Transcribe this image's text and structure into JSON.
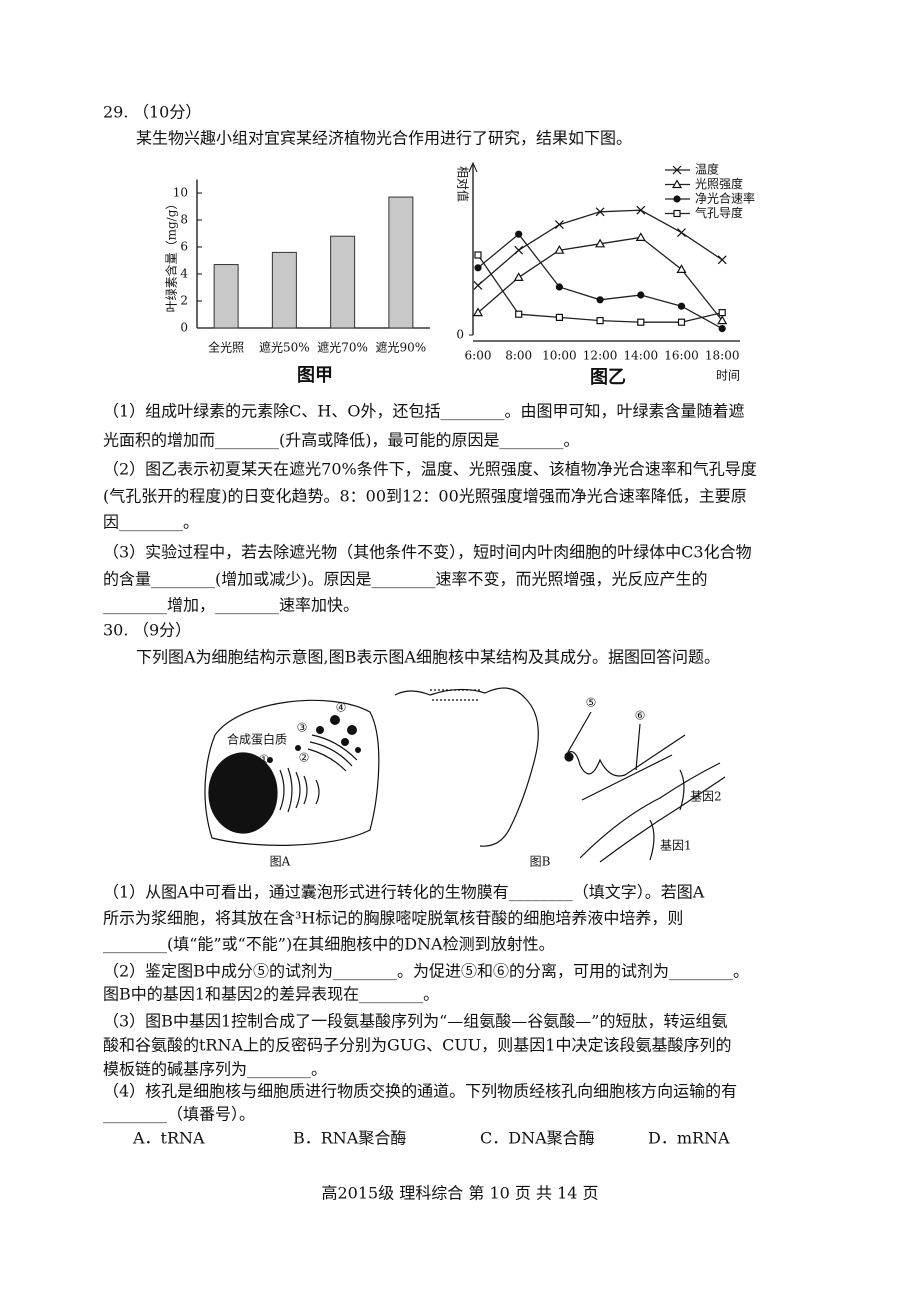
{
  "q29": {
    "number": "29.",
    "score": "（10分）",
    "intro": "某生物兴趣小组对宜宾某经济植物光合作用进行了研究，结果如下图。",
    "parts": [
      [
        "（1）组成叶绿素的元素除C、H、O外，还包括________。由图甲可知，叶绿素含量随着遮",
        "光面积的增加而________(升高或降低)，最可能的原因是________。"
      ],
      [
        "（2）图乙表示初夏某天在遮光70%条件下，温度、光照强度、该植物净光合速率和气孔导度",
        "(气孔张开的程度)的日变化趋势。8：00到12：00光照强度增强而净光合速率降低，主要原",
        "因________。"
      ],
      [
        "（3）实验过程中，若去除遮光物（其他条件不变），短时间内叶肉细胞的叶绿体中C3化合物",
        "的含量________(增加或减少)。原因是________速率不变，而光照增强，光反应产生的",
        "________增加，________速率加快。"
      ]
    ]
  },
  "chart_data": [
    {
      "type": "bar",
      "title": "图甲",
      "y_label": "叶绿素含量（mg/g）",
      "categories": [
        "全光照",
        "遮光50%",
        "遮光70%",
        "遮光90%"
      ],
      "values": [
        4.7,
        5.6,
        6.8,
        9.7
      ],
      "color": "#c8c8c8",
      "ylim": [
        0,
        11
      ],
      "yticks": [
        0,
        2,
        4,
        6,
        8,
        10
      ]
    },
    {
      "type": "line",
      "title": "图乙",
      "y_label": "相对值",
      "x_label": "时间",
      "categories": [
        "6:00",
        "8:00",
        "10:00",
        "12:00",
        "14:00",
        "16:00",
        "18:00"
      ],
      "ylim": [
        0,
        10
      ],
      "yticks": [
        0
      ],
      "series": [
        {
          "name": "温度",
          "color": "#222222",
          "marker": "cross",
          "values": [
            3.1,
            5.3,
            6.9,
            7.7,
            7.8,
            6.4,
            4.7
          ]
        },
        {
          "name": "光照强度",
          "color": "#222222",
          "marker": "triangle",
          "values": [
            1.4,
            3.6,
            5.3,
            5.7,
            6.1,
            4.1,
            0.9
          ]
        },
        {
          "name": "净光合速率",
          "color": "#222222",
          "marker": "circle",
          "values": [
            4.2,
            6.3,
            3.0,
            2.2,
            2.5,
            1.8,
            0.4
          ]
        },
        {
          "name": "气孔导度",
          "color": "#222222",
          "marker": "square",
          "values": [
            5.0,
            1.3,
            1.1,
            0.9,
            0.8,
            0.8,
            1.4
          ]
        }
      ]
    }
  ],
  "q30": {
    "number": "30.",
    "score": "（9分）",
    "intro": "下列图A为细胞结构示意图,图B表示图A细胞核中某结构及其成分。据图回答问题。",
    "figure_a": {
      "labels": [
        "①",
        "②",
        "③",
        "④"
      ],
      "annotation": "合成蛋白质",
      "caption": "图A"
    },
    "figure_b": {
      "labels": [
        "⑤",
        "⑥"
      ],
      "genes": [
        "基因2",
        "基因1"
      ],
      "caption": "图B"
    },
    "parts": [
      [
        "（1）从图A中可看出，通过囊泡形式进行转化的生物膜有________（填文字）。若图A",
        "所示为浆细胞，将其放在含³H标记的胸腺嘧啶脱氧核苷酸的细胞培养液中培养，则",
        "________(填“能”或“不能”)在其细胞核中的DNA检测到放射性。"
      ],
      [
        "（2）鉴定图B中成分⑤的试剂为________。为促进⑤和⑥的分离，可用的试剂为________。",
        "图B中的基因1和基因2的差异表现在________。"
      ],
      [
        "（3）图B中基因1控制合成了一段氨基酸序列为“—组氨酸—谷氨酸—”的短肽，转运组氨",
        "酸和谷氨酸的tRNA上的反密码子分别为GUG、CUU，则基因1中决定该段氨基酸序列的",
        "模板链的碱基序列为________。"
      ],
      [
        "（4）核孔是细胞核与细胞质进行物质交换的通道。下列物质经核孔向细胞核方向运输的有",
        "________（填番号）。"
      ]
    ],
    "options": [
      "A．tRNA",
      "B．RNA聚合酶",
      "C．DNA聚合酶",
      "D．mRNA"
    ]
  },
  "footer": "高2015级 理科综合 第 10 页 共 14 页"
}
